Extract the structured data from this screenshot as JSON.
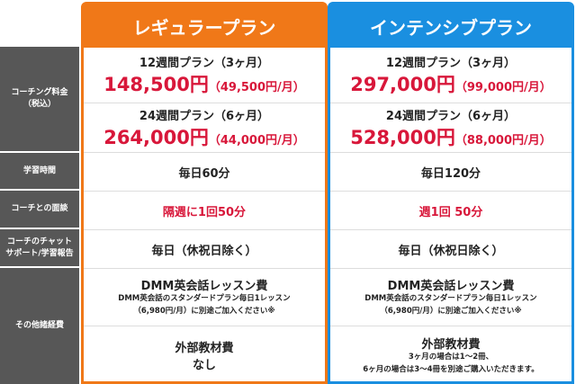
{
  "labels": [
    "コーチング料金\n（税込）",
    "学習時間",
    "コーチとの面談",
    "コーチのチャット\nサポート/学習報告",
    "その他諸経費"
  ],
  "plans": [
    {
      "name": "レギュラープラン",
      "color": "#f07818",
      "p1_title": "12週間プラン（3ヶ月）",
      "p1_price": "148,500円",
      "p1_monthly": "（49,500円/月）",
      "p2_title": "24週間プラン（6ヶ月）",
      "p2_price": "264,000円",
      "p2_monthly": "（44,000円/月）",
      "study": "毎日60分",
      "meeting": "隔週に1回50分",
      "chat": "毎日（休祝日除く）",
      "dmm_title": "DMM英会話レッスン費",
      "dmm_l1": "DMM英会話のスタンダードプラン毎日1レッスン",
      "dmm_l2": "（6,980円/月）に別途ご加入ください※",
      "mat_title": "外部教材費",
      "mat_l1": "なし",
      "mat_l2": ""
    },
    {
      "name": "インテンシブプラン",
      "color": "#1a8fe0",
      "p1_title": "12週間プラン（3ヶ月）",
      "p1_price": "297,000円",
      "p1_monthly": "（99,000円/月）",
      "p2_title": "24週間プラン（6ヶ月）",
      "p2_price": "528,000円",
      "p2_monthly": "（88,000円/月）",
      "study": "毎日120分",
      "meeting": "週1回 50分",
      "chat": "毎日（休祝日除く）",
      "dmm_title": "DMM英会話レッスン費",
      "dmm_l1": "DMM英会話のスタンダードプラン毎日1レッスン",
      "dmm_l2": "（6,980円/月）に別途ご加入ください※",
      "mat_title": "外部教材費",
      "mat_l1": "3ヶ月の場合は1～2冊、",
      "mat_l2": "6ヶ月の場合は3～4冊を別途ご購入いただきます。"
    }
  ]
}
